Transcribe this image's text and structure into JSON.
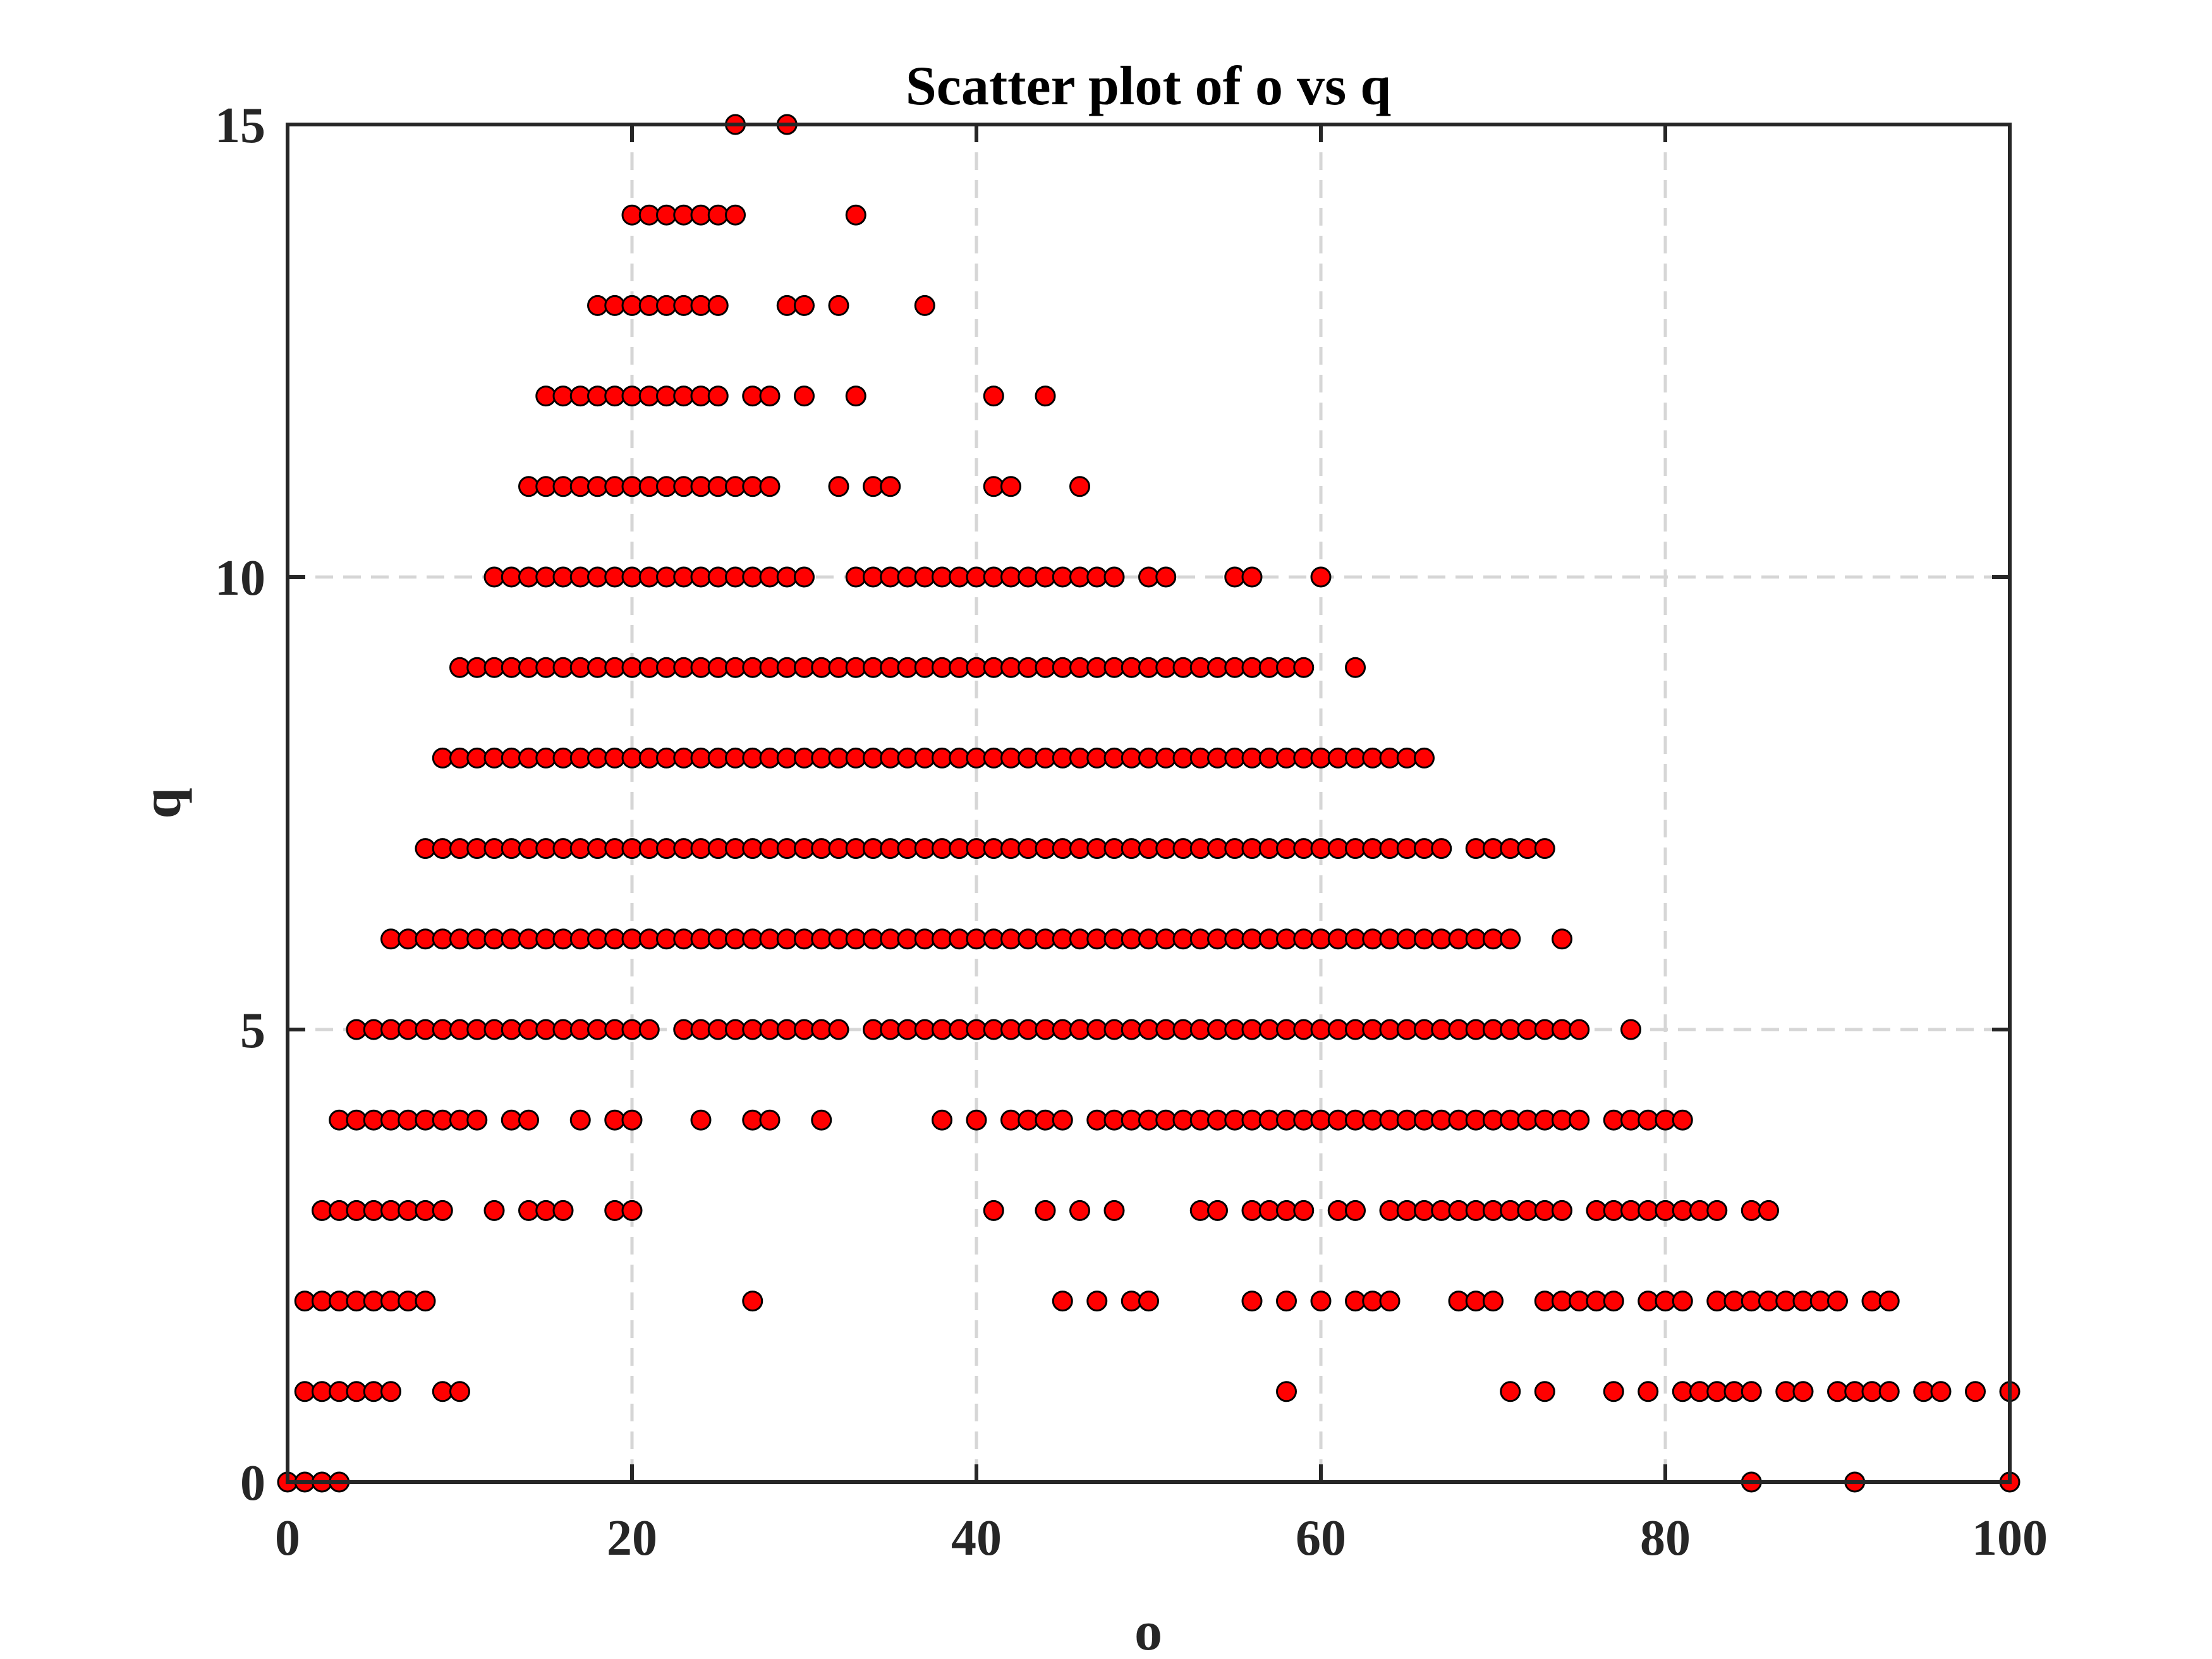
{
  "chart_data": {
    "type": "scatter",
    "title": "Scatter plot of o vs q",
    "xlabel": "o",
    "ylabel": "q",
    "xlim": [
      0,
      100
    ],
    "ylim": [
      0,
      15
    ],
    "xticks": [
      "0",
      "20",
      "40",
      "60",
      "80",
      "100"
    ],
    "yticks": [
      "0",
      "5",
      "10",
      "15"
    ],
    "grid": true,
    "marker_color": "#ff0000",
    "marker_edge_color": "#000000",
    "rows": [
      {
        "y": 0,
        "x": [
          0,
          1,
          2,
          3,
          85,
          91,
          100
        ]
      },
      {
        "y": 1,
        "x": [
          1,
          2,
          3,
          4,
          5,
          6,
          9,
          10,
          58,
          71,
          73,
          77,
          79,
          81,
          82,
          83,
          84,
          85,
          87,
          88,
          90,
          91,
          92,
          93,
          95,
          96,
          98,
          100
        ]
      },
      {
        "y": 2,
        "x": [
          1,
          2,
          3,
          4,
          5,
          6,
          7,
          8,
          27,
          45,
          47,
          49,
          50,
          56,
          58,
          60,
          62,
          63,
          64,
          68,
          69,
          70,
          73,
          74,
          75,
          76,
          77,
          79,
          80,
          81,
          83,
          84,
          85,
          86,
          87,
          88,
          89,
          90,
          92,
          93
        ]
      },
      {
        "y": 3,
        "x": [
          2,
          3,
          4,
          5,
          6,
          7,
          8,
          9,
          12,
          14,
          15,
          16,
          19,
          20,
          41,
          44,
          46,
          48,
          53,
          54,
          56,
          57,
          58,
          59,
          61,
          62,
          64,
          65,
          66,
          67,
          68,
          69,
          70,
          71,
          72,
          73,
          74,
          76,
          77,
          78,
          79,
          80,
          81,
          82,
          83,
          85,
          86
        ]
      },
      {
        "y": 4,
        "x": [
          3,
          4,
          5,
          6,
          7,
          8,
          9,
          10,
          11,
          13,
          14,
          17,
          19,
          20,
          24,
          27,
          28,
          31,
          38,
          40,
          42,
          43,
          44,
          45,
          47,
          48,
          49,
          50,
          51,
          52,
          53,
          54,
          55,
          56,
          57,
          58,
          59,
          60,
          61,
          62,
          63,
          64,
          65,
          66,
          67,
          68,
          69,
          70,
          71,
          72,
          73,
          74,
          75,
          77,
          78,
          79,
          80,
          81
        ]
      },
      {
        "y": 5,
        "x": [
          4,
          5,
          6,
          7,
          8,
          9,
          10,
          11,
          12,
          13,
          14,
          15,
          16,
          17,
          18,
          19,
          20,
          21,
          23,
          24,
          25,
          26,
          27,
          28,
          29,
          30,
          31,
          32,
          34,
          35,
          36,
          37,
          38,
          39,
          40,
          41,
          42,
          43,
          44,
          45,
          46,
          47,
          48,
          49,
          50,
          51,
          52,
          53,
          54,
          55,
          56,
          57,
          58,
          59,
          60,
          61,
          62,
          63,
          64,
          65,
          66,
          67,
          68,
          69,
          70,
          71,
          72,
          73,
          74,
          75,
          78
        ]
      },
      {
        "y": 6,
        "x": [
          6,
          7,
          8,
          9,
          10,
          11,
          12,
          13,
          14,
          15,
          16,
          17,
          18,
          19,
          20,
          21,
          22,
          23,
          24,
          25,
          26,
          27,
          28,
          29,
          30,
          31,
          32,
          33,
          34,
          35,
          36,
          37,
          38,
          39,
          40,
          41,
          42,
          43,
          44,
          45,
          46,
          47,
          48,
          49,
          50,
          51,
          52,
          53,
          54,
          55,
          56,
          57,
          58,
          59,
          60,
          61,
          62,
          63,
          64,
          65,
          66,
          67,
          68,
          69,
          70,
          71,
          74
        ]
      },
      {
        "y": 7,
        "x": [
          8,
          9,
          10,
          11,
          12,
          13,
          14,
          15,
          16,
          17,
          18,
          19,
          20,
          21,
          22,
          23,
          24,
          25,
          26,
          27,
          28,
          29,
          30,
          31,
          32,
          33,
          34,
          35,
          36,
          37,
          38,
          39,
          40,
          41,
          42,
          43,
          44,
          45,
          46,
          47,
          48,
          49,
          50,
          51,
          52,
          53,
          54,
          55,
          56,
          57,
          58,
          59,
          60,
          61,
          62,
          63,
          64,
          65,
          66,
          67,
          69,
          70,
          71,
          72,
          73
        ]
      },
      {
        "y": 8,
        "x": [
          9,
          10,
          11,
          12,
          13,
          14,
          15,
          16,
          17,
          18,
          19,
          20,
          21,
          22,
          23,
          24,
          25,
          26,
          27,
          28,
          29,
          30,
          31,
          32,
          33,
          34,
          35,
          36,
          37,
          38,
          39,
          40,
          41,
          42,
          43,
          44,
          45,
          46,
          47,
          48,
          49,
          50,
          51,
          52,
          53,
          54,
          55,
          56,
          57,
          58,
          59,
          60,
          61,
          62,
          63,
          64,
          65,
          66
        ]
      },
      {
        "y": 9,
        "x": [
          10,
          11,
          12,
          13,
          14,
          15,
          16,
          17,
          18,
          19,
          20,
          21,
          22,
          23,
          24,
          25,
          26,
          27,
          28,
          29,
          30,
          31,
          32,
          33,
          34,
          35,
          36,
          37,
          38,
          39,
          40,
          41,
          42,
          43,
          44,
          45,
          46,
          47,
          48,
          49,
          50,
          51,
          52,
          53,
          54,
          55,
          56,
          57,
          58,
          59,
          62
        ]
      },
      {
        "y": 10,
        "x": [
          12,
          13,
          14,
          15,
          16,
          17,
          18,
          19,
          20,
          21,
          22,
          23,
          24,
          25,
          26,
          27,
          28,
          29,
          30,
          33,
          34,
          35,
          36,
          37,
          38,
          39,
          40,
          41,
          42,
          43,
          44,
          45,
          46,
          47,
          48,
          50,
          51,
          55,
          56,
          60
        ]
      },
      {
        "y": 11,
        "x": [
          14,
          15,
          16,
          17,
          18,
          19,
          20,
          21,
          22,
          23,
          24,
          25,
          26,
          27,
          28,
          32,
          34,
          35,
          41,
          42,
          46
        ]
      },
      {
        "y": 12,
        "x": [
          15,
          16,
          17,
          18,
          19,
          20,
          21,
          22,
          23,
          24,
          25,
          27,
          28,
          30,
          33,
          41,
          44
        ]
      },
      {
        "y": 13,
        "x": [
          18,
          19,
          20,
          21,
          22,
          23,
          24,
          25,
          29,
          30,
          32,
          37
        ]
      },
      {
        "y": 14,
        "x": [
          20,
          21,
          22,
          23,
          24,
          25,
          26,
          33
        ]
      },
      {
        "y": 15,
        "x": [
          26,
          29
        ]
      }
    ]
  }
}
